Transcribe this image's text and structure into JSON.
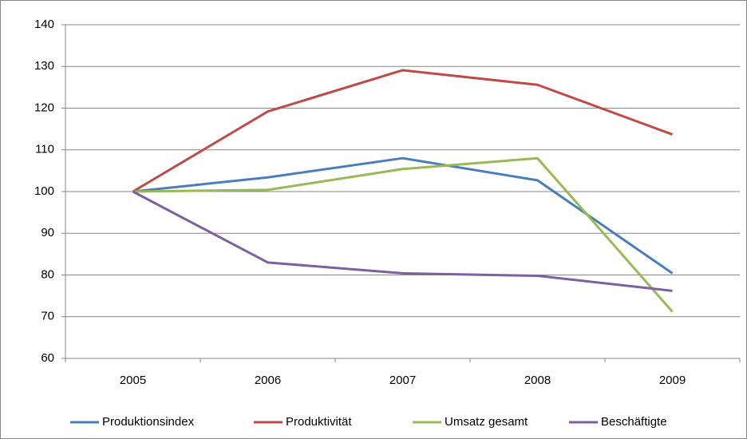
{
  "chart_data": {
    "type": "line",
    "categories": [
      "2005",
      "2006",
      "2007",
      "2008",
      "2009"
    ],
    "series": [
      {
        "name": "Produktionsindex",
        "color": "#4a7ebb",
        "values": [
          100,
          103.4,
          108,
          102.7,
          80.4
        ]
      },
      {
        "name": "Produktivität",
        "color": "#be4b48",
        "values": [
          100,
          119.2,
          129.1,
          125.6,
          113.7
        ]
      },
      {
        "name": "Umsatz gesamt",
        "color": "#98b954",
        "values": [
          100,
          100.4,
          105.4,
          108,
          71.2
        ]
      },
      {
        "name": "Beschäftigte",
        "color": "#7d60a0",
        "values": [
          100,
          83,
          80.4,
          79.8,
          76.2
        ]
      }
    ],
    "ylim": [
      60,
      140
    ],
    "yticks": [
      60,
      70,
      80,
      90,
      100,
      110,
      120,
      130,
      140
    ],
    "grid": true,
    "legend": "bottom"
  }
}
